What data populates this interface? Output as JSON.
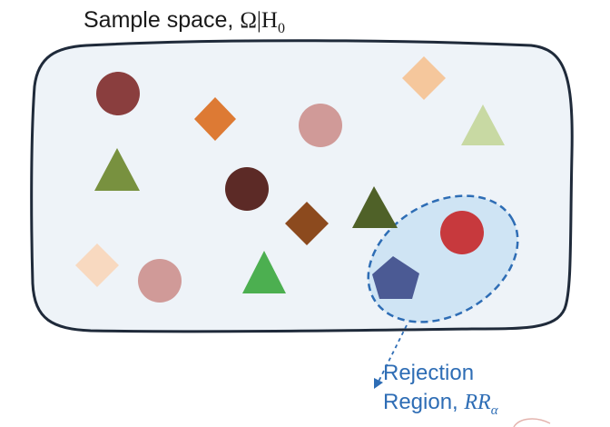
{
  "title": {
    "text": "Sample space, ",
    "symbol": "Ω|H",
    "subscript": "0"
  },
  "rejection_region": {
    "line1": "Rejection",
    "line2": "Region, ",
    "math": "RR",
    "subscript": "α"
  },
  "colors": {
    "sample_space_fill": "#eef3f8",
    "sample_space_stroke": "#1f2a3a",
    "rejection_fill": "#cfe4f4",
    "rejection_stroke": "#2e6db5"
  }
}
